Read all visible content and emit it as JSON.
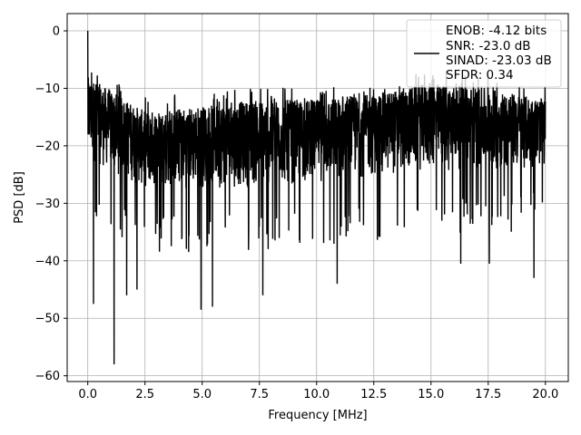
{
  "chart_data": {
    "type": "line",
    "title": "",
    "xlabel": "Frequency [MHz]",
    "ylabel": "PSD [dB]",
    "xlim": [
      -0.9,
      21.0
    ],
    "ylim": [
      -61,
      3
    ],
    "xticks": [
      0.0,
      2.5,
      5.0,
      7.5,
      10.0,
      12.5,
      15.0,
      17.5,
      20.0
    ],
    "xtick_labels": [
      "0.0",
      "2.5",
      "5.0",
      "7.5",
      "10.0",
      "12.5",
      "15.0",
      "17.5",
      "20.0"
    ],
    "yticks": [
      0,
      -10,
      -20,
      -30,
      -40,
      -50,
      -60
    ],
    "ytick_labels": [
      "0",
      "−10",
      "−20",
      "−30",
      "−40",
      "−50",
      "−60"
    ],
    "grid": true,
    "legend_position": "top-right",
    "series": [
      {
        "name": "",
        "color": "#000000",
        "x_range": [
          0.0,
          20.0
        ],
        "peak": {
          "x": 0.0,
          "y": 0.0
        },
        "band_top": [
          [
            0.0,
            -8
          ],
          [
            2.5,
            -14
          ],
          [
            5.0,
            -13
          ],
          [
            7.5,
            -12
          ],
          [
            10.0,
            -12
          ],
          [
            12.5,
            -11
          ],
          [
            15.0,
            -9
          ],
          [
            17.5,
            -10
          ],
          [
            20.0,
            -12
          ]
        ],
        "band_bottom": [
          [
            0.0,
            -25
          ],
          [
            2.5,
            -30
          ],
          [
            5.0,
            -30
          ],
          [
            7.5,
            -30
          ],
          [
            10.0,
            -29
          ],
          [
            12.5,
            -28
          ],
          [
            15.0,
            -27
          ],
          [
            17.5,
            -27
          ],
          [
            20.0,
            -26
          ]
        ],
        "dips": [
          [
            0.25,
            -47.5
          ],
          [
            1.15,
            -58
          ],
          [
            1.7,
            -46
          ],
          [
            2.15,
            -45
          ],
          [
            4.95,
            -48.5
          ],
          [
            5.45,
            -48
          ],
          [
            7.65,
            -46
          ],
          [
            10.9,
            -44
          ],
          [
            16.3,
            -40.5
          ],
          [
            17.55,
            -40.5
          ],
          [
            19.5,
            -43
          ]
        ]
      }
    ],
    "legend": {
      "lines": [
        "ENOB: -4.12 bits",
        "SNR: -23.0 dB",
        "SINAD: -23.03 dB",
        "SFDR: 0.34"
      ]
    }
  }
}
